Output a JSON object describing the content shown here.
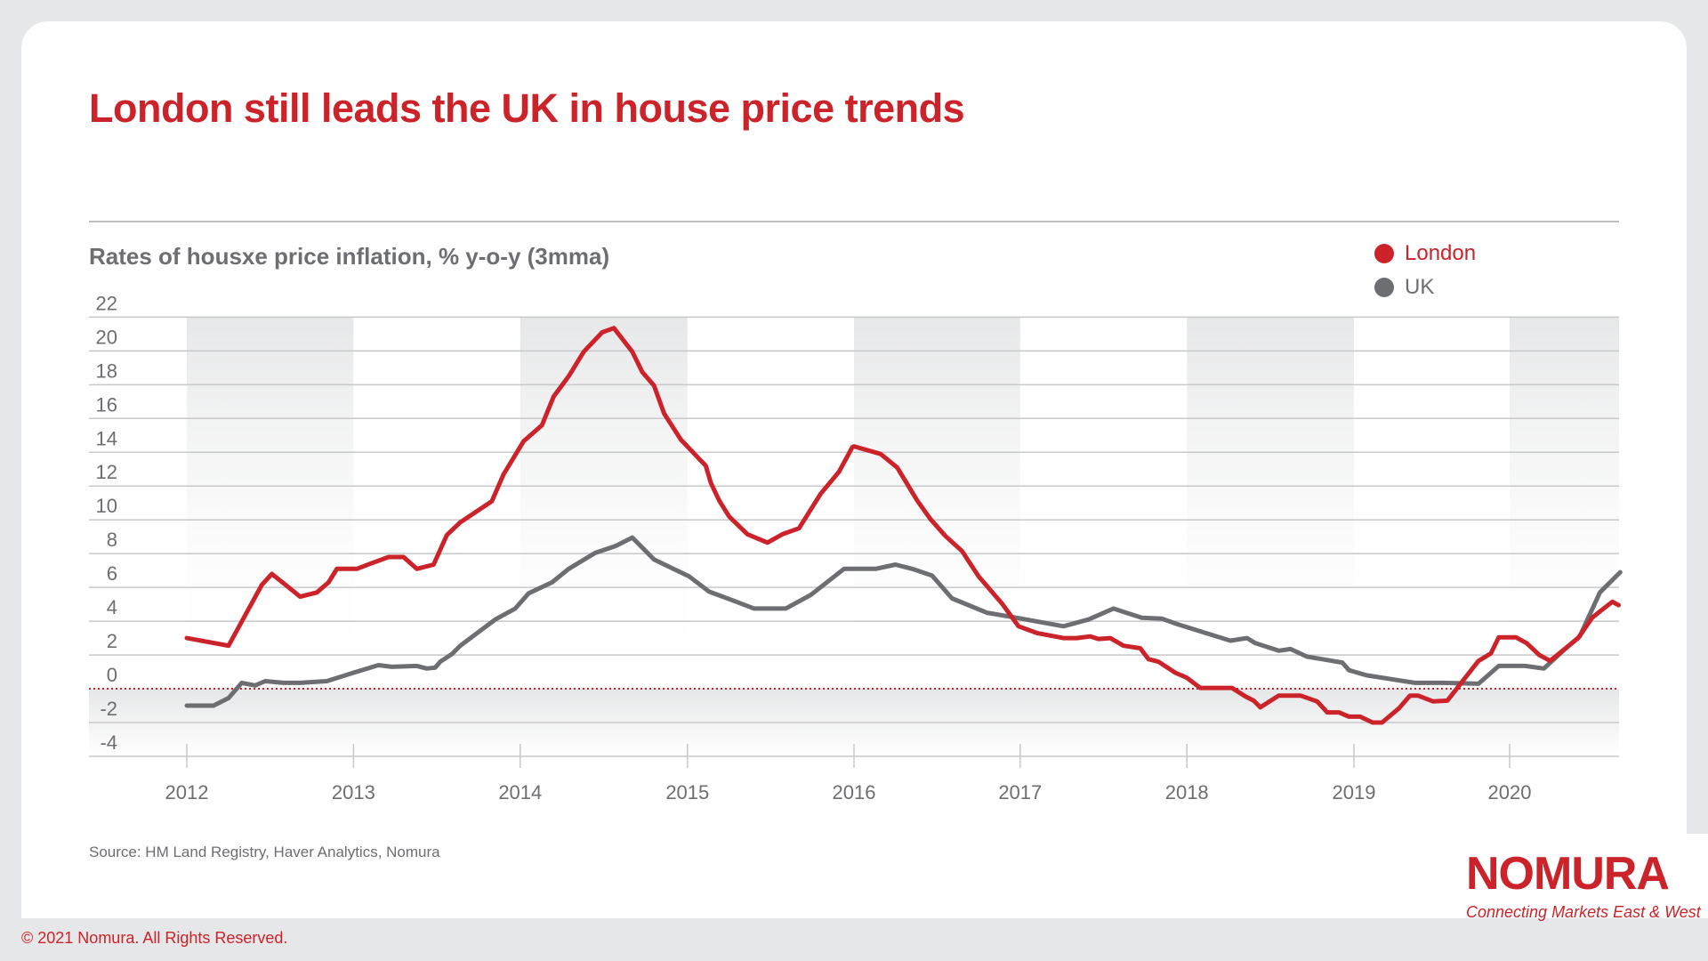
{
  "title": "London still leads the UK in house price trends",
  "source": "Source: HM Land Registry, Haver Analytics, Nomura",
  "copyright": "© 2021 Nomura. All Rights Reserved.",
  "logo": {
    "name": "NOMURA",
    "tagline": "Connecting Markets East & West"
  },
  "colors": {
    "accent": "#cc2229",
    "london": "#cc2229",
    "uk": "#6d6e71",
    "background": "#e6e7e8"
  },
  "chart_data": {
    "type": "line",
    "title": "Rates of housxe price inflation, % y-o-y (3mma)",
    "xlabel": "",
    "ylabel": "",
    "ylim": [
      -4,
      22
    ],
    "yticks": [
      22,
      20,
      18,
      16,
      14,
      12,
      10,
      8,
      6,
      4,
      2,
      0,
      -2,
      -4
    ],
    "xticks": [
      "2012",
      "2013",
      "2014",
      "2015",
      "2016",
      "2017",
      "2018",
      "2019",
      "2020"
    ],
    "grid": true,
    "legend_position": "top-right",
    "reference_line": 0,
    "series": [
      {
        "name": "London",
        "color": "#cc2229",
        "points": [
          [
            2012.0,
            3.0
          ],
          [
            2012.25,
            2.55
          ],
          [
            2012.45,
            6.15
          ],
          [
            2012.51,
            6.8
          ],
          [
            2012.58,
            6.25
          ],
          [
            2012.68,
            5.45
          ],
          [
            2012.78,
            5.7
          ],
          [
            2012.85,
            6.3
          ],
          [
            2012.9,
            7.1
          ],
          [
            2013.02,
            7.1
          ],
          [
            2013.1,
            7.4
          ],
          [
            2013.21,
            7.8
          ],
          [
            2013.3,
            7.8
          ],
          [
            2013.38,
            7.1
          ],
          [
            2013.48,
            7.35
          ],
          [
            2013.56,
            9.1
          ],
          [
            2013.64,
            9.85
          ],
          [
            2013.83,
            11.1
          ],
          [
            2013.9,
            12.7
          ],
          [
            2014.02,
            14.65
          ],
          [
            2014.13,
            15.6
          ],
          [
            2014.2,
            17.3
          ],
          [
            2014.29,
            18.5
          ],
          [
            2014.38,
            19.95
          ],
          [
            2014.49,
            21.1
          ],
          [
            2014.56,
            21.35
          ],
          [
            2014.67,
            19.95
          ],
          [
            2014.73,
            18.75
          ],
          [
            2014.8,
            17.95
          ],
          [
            2014.86,
            16.3
          ],
          [
            2014.96,
            14.75
          ],
          [
            2015.11,
            13.2
          ],
          [
            2015.14,
            12.2
          ],
          [
            2015.19,
            11.15
          ],
          [
            2015.25,
            10.2
          ],
          [
            2015.36,
            9.15
          ],
          [
            2015.48,
            8.65
          ],
          [
            2015.57,
            9.15
          ],
          [
            2015.67,
            9.5
          ],
          [
            2015.8,
            11.55
          ],
          [
            2015.91,
            12.85
          ],
          [
            2015.99,
            14.3
          ],
          [
            2016.0,
            14.35
          ],
          [
            2016.16,
            13.9
          ],
          [
            2016.26,
            13.1
          ],
          [
            2016.38,
            11.15
          ],
          [
            2016.46,
            10.05
          ],
          [
            2016.55,
            9.05
          ],
          [
            2016.65,
            8.15
          ],
          [
            2016.75,
            6.65
          ],
          [
            2016.89,
            5.05
          ],
          [
            2016.99,
            3.7
          ],
          [
            2017.1,
            3.3
          ],
          [
            2017.26,
            3.0
          ],
          [
            2017.34,
            3.0
          ],
          [
            2017.42,
            3.1
          ],
          [
            2017.47,
            2.95
          ],
          [
            2017.54,
            3.0
          ],
          [
            2017.62,
            2.55
          ],
          [
            2017.72,
            2.4
          ],
          [
            2017.77,
            1.75
          ],
          [
            2017.83,
            1.6
          ],
          [
            2017.93,
            0.95
          ],
          [
            2018.0,
            0.65
          ],
          [
            2018.08,
            0.05
          ],
          [
            2018.27,
            0.05
          ],
          [
            2018.35,
            -0.45
          ],
          [
            2018.4,
            -0.7
          ],
          [
            2018.44,
            -1.1
          ],
          [
            2018.55,
            -0.4
          ],
          [
            2018.68,
            -0.4
          ],
          [
            2018.78,
            -0.75
          ],
          [
            2018.84,
            -1.4
          ],
          [
            2018.91,
            -1.4
          ],
          [
            2018.97,
            -1.65
          ],
          [
            2019.04,
            -1.65
          ],
          [
            2019.12,
            -2.0
          ],
          [
            2019.18,
            -2.0
          ],
          [
            2019.29,
            -1.15
          ],
          [
            2019.36,
            -0.4
          ],
          [
            2019.41,
            -0.4
          ],
          [
            2019.51,
            -0.75
          ],
          [
            2019.6,
            -0.7
          ],
          [
            2019.71,
            0.6
          ],
          [
            2019.8,
            1.65
          ],
          [
            2019.88,
            2.1
          ],
          [
            2019.93,
            3.05
          ],
          [
            2020.04,
            3.05
          ],
          [
            2020.11,
            2.7
          ],
          [
            2020.19,
            2.0
          ],
          [
            2020.26,
            1.65
          ],
          [
            2020.44,
            3.0
          ],
          [
            2020.53,
            4.2
          ],
          [
            2020.59,
            4.65
          ],
          [
            2020.66,
            5.15
          ],
          [
            2020.7,
            4.95
          ]
        ]
      },
      {
        "name": "UK",
        "color": "#6d6e71",
        "points": [
          [
            2012.0,
            -1.0
          ],
          [
            2012.16,
            -1.0
          ],
          [
            2012.25,
            -0.55
          ],
          [
            2012.33,
            0.35
          ],
          [
            2012.41,
            0.2
          ],
          [
            2012.47,
            0.45
          ],
          [
            2012.58,
            0.35
          ],
          [
            2012.68,
            0.35
          ],
          [
            2012.84,
            0.45
          ],
          [
            2013.0,
            0.95
          ],
          [
            2013.15,
            1.4
          ],
          [
            2013.23,
            1.3
          ],
          [
            2013.38,
            1.35
          ],
          [
            2013.44,
            1.2
          ],
          [
            2013.49,
            1.25
          ],
          [
            2013.52,
            1.6
          ],
          [
            2013.59,
            2.05
          ],
          [
            2013.64,
            2.55
          ],
          [
            2013.85,
            4.1
          ],
          [
            2013.97,
            4.75
          ],
          [
            2014.05,
            5.65
          ],
          [
            2014.19,
            6.3
          ],
          [
            2014.29,
            7.1
          ],
          [
            2014.45,
            8.05
          ],
          [
            2014.57,
            8.45
          ],
          [
            2014.67,
            8.95
          ],
          [
            2014.8,
            7.65
          ],
          [
            2015.01,
            6.65
          ],
          [
            2015.13,
            5.75
          ],
          [
            2015.28,
            5.2
          ],
          [
            2015.4,
            4.75
          ],
          [
            2015.59,
            4.75
          ],
          [
            2015.74,
            5.55
          ],
          [
            2015.94,
            7.1
          ],
          [
            2016.0,
            7.1
          ],
          [
            2016.13,
            7.1
          ],
          [
            2016.25,
            7.35
          ],
          [
            2016.35,
            7.1
          ],
          [
            2016.47,
            6.7
          ],
          [
            2016.59,
            5.35
          ],
          [
            2016.8,
            4.5
          ],
          [
            2016.98,
            4.2
          ],
          [
            2017.26,
            3.7
          ],
          [
            2017.41,
            4.1
          ],
          [
            2017.56,
            4.75
          ],
          [
            2017.73,
            4.2
          ],
          [
            2017.85,
            4.15
          ],
          [
            2017.95,
            3.8
          ],
          [
            2018.26,
            2.85
          ],
          [
            2018.36,
            3.0
          ],
          [
            2018.41,
            2.7
          ],
          [
            2018.55,
            2.25
          ],
          [
            2018.62,
            2.35
          ],
          [
            2018.72,
            1.9
          ],
          [
            2018.81,
            1.75
          ],
          [
            2018.93,
            1.55
          ],
          [
            2018.97,
            1.1
          ],
          [
            2019.08,
            0.8
          ],
          [
            2019.39,
            0.35
          ],
          [
            2019.57,
            0.35
          ],
          [
            2019.8,
            0.3
          ],
          [
            2019.93,
            1.35
          ],
          [
            2020.1,
            1.35
          ],
          [
            2020.22,
            1.2
          ],
          [
            2020.35,
            2.3
          ],
          [
            2020.45,
            3.1
          ],
          [
            2020.58,
            5.7
          ],
          [
            2020.71,
            6.9
          ]
        ]
      }
    ]
  }
}
